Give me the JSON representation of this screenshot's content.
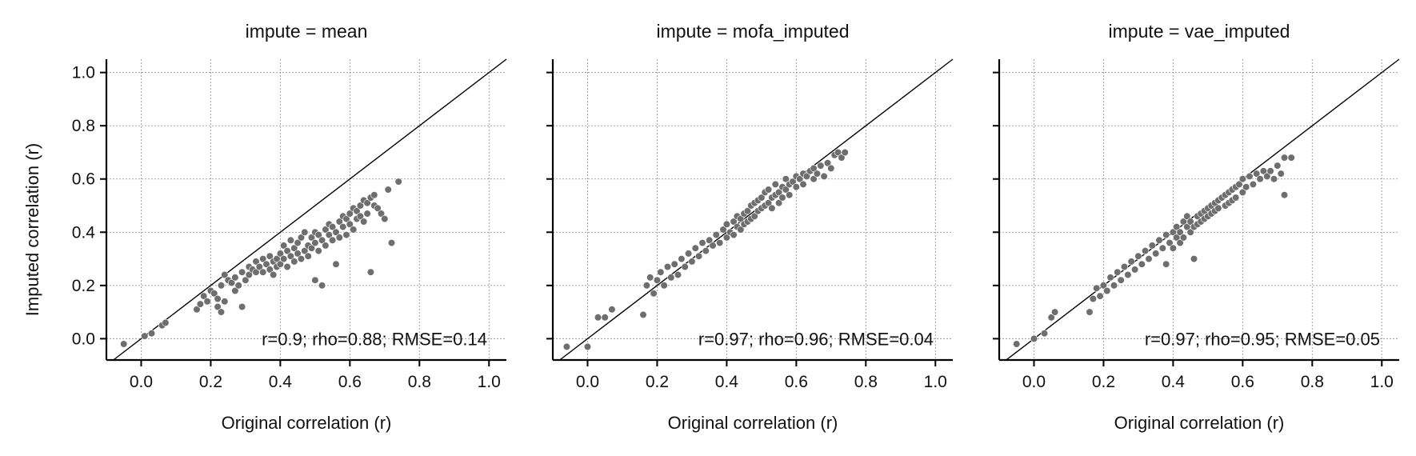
{
  "chart_data": [
    {
      "type": "scatter",
      "title": "impute = mean",
      "xlabel": "Original correlation (r)",
      "ylabel": "Imputed correlation (r)",
      "xlim": [
        -0.1,
        1.05
      ],
      "ylim": [
        -0.08,
        1.05
      ],
      "xticks": [
        "0.0",
        "0.2",
        "0.4",
        "0.6",
        "0.8",
        "1.0"
      ],
      "yticks": [
        "0.0",
        "0.2",
        "0.4",
        "0.6",
        "0.8",
        "1.0"
      ],
      "annotation": "r=0.9; rho=0.88; RMSE=0.14",
      "reference_line": "y = x",
      "grid": true,
      "point_color": "#6e6e6e",
      "points": [
        [
          -0.05,
          -0.02
        ],
        [
          0.01,
          0.01
        ],
        [
          0.03,
          0.02
        ],
        [
          0.06,
          0.05
        ],
        [
          0.07,
          0.06
        ],
        [
          0.16,
          0.11
        ],
        [
          0.17,
          0.13
        ],
        [
          0.18,
          0.16
        ],
        [
          0.19,
          0.14
        ],
        [
          0.2,
          0.18
        ],
        [
          0.21,
          0.17
        ],
        [
          0.22,
          0.15
        ],
        [
          0.22,
          0.12
        ],
        [
          0.23,
          0.2
        ],
        [
          0.23,
          0.1
        ],
        [
          0.24,
          0.24
        ],
        [
          0.24,
          0.14
        ],
        [
          0.25,
          0.22
        ],
        [
          0.26,
          0.21
        ],
        [
          0.27,
          0.23
        ],
        [
          0.27,
          0.18
        ],
        [
          0.28,
          0.2
        ],
        [
          0.29,
          0.25
        ],
        [
          0.29,
          0.12
        ],
        [
          0.3,
          0.22
        ],
        [
          0.31,
          0.27
        ],
        [
          0.31,
          0.24
        ],
        [
          0.32,
          0.26
        ],
        [
          0.33,
          0.25
        ],
        [
          0.33,
          0.29
        ],
        [
          0.34,
          0.27
        ],
        [
          0.35,
          0.25
        ],
        [
          0.35,
          0.3
        ],
        [
          0.36,
          0.28
        ],
        [
          0.37,
          0.26
        ],
        [
          0.37,
          0.31
        ],
        [
          0.38,
          0.29
        ],
        [
          0.38,
          0.24
        ],
        [
          0.39,
          0.3
        ],
        [
          0.39,
          0.27
        ],
        [
          0.4,
          0.32
        ],
        [
          0.4,
          0.28
        ],
        [
          0.41,
          0.3
        ],
        [
          0.41,
          0.35
        ],
        [
          0.42,
          0.27
        ],
        [
          0.42,
          0.33
        ],
        [
          0.43,
          0.31
        ],
        [
          0.43,
          0.37
        ],
        [
          0.44,
          0.29
        ],
        [
          0.44,
          0.34
        ],
        [
          0.45,
          0.32
        ],
        [
          0.45,
          0.36
        ],
        [
          0.46,
          0.3
        ],
        [
          0.46,
          0.38
        ],
        [
          0.47,
          0.33
        ],
        [
          0.47,
          0.4
        ],
        [
          0.48,
          0.35
        ],
        [
          0.48,
          0.31
        ],
        [
          0.49,
          0.38
        ],
        [
          0.49,
          0.34
        ],
        [
          0.5,
          0.4
        ],
        [
          0.5,
          0.36
        ],
        [
          0.5,
          0.22
        ],
        [
          0.51,
          0.39
        ],
        [
          0.51,
          0.33
        ],
        [
          0.52,
          0.37
        ],
        [
          0.52,
          0.2
        ],
        [
          0.53,
          0.41
        ],
        [
          0.53,
          0.35
        ],
        [
          0.54,
          0.39
        ],
        [
          0.54,
          0.43
        ],
        [
          0.55,
          0.37
        ],
        [
          0.55,
          0.42
        ],
        [
          0.56,
          0.4
        ],
        [
          0.56,
          0.28
        ],
        [
          0.57,
          0.44
        ],
        [
          0.57,
          0.38
        ],
        [
          0.58,
          0.46
        ],
        [
          0.58,
          0.42
        ],
        [
          0.59,
          0.45
        ],
        [
          0.59,
          0.39
        ],
        [
          0.6,
          0.47
        ],
        [
          0.6,
          0.43
        ],
        [
          0.61,
          0.49
        ],
        [
          0.61,
          0.41
        ],
        [
          0.62,
          0.48
        ],
        [
          0.62,
          0.45
        ],
        [
          0.63,
          0.5
        ],
        [
          0.63,
          0.46
        ],
        [
          0.64,
          0.52
        ],
        [
          0.64,
          0.44
        ],
        [
          0.65,
          0.51
        ],
        [
          0.65,
          0.47
        ],
        [
          0.66,
          0.53
        ],
        [
          0.66,
          0.25
        ],
        [
          0.67,
          0.54
        ],
        [
          0.67,
          0.5
        ],
        [
          0.68,
          0.49
        ],
        [
          0.69,
          0.47
        ],
        [
          0.7,
          0.45
        ],
        [
          0.71,
          0.56
        ],
        [
          0.72,
          0.36
        ],
        [
          0.74,
          0.59
        ]
      ]
    },
    {
      "type": "scatter",
      "title": "impute = mofa_imputed",
      "xlabel": "Original correlation (r)",
      "ylabel": "",
      "xlim": [
        -0.1,
        1.05
      ],
      "ylim": [
        -0.08,
        1.05
      ],
      "xticks": [
        "0.0",
        "0.2",
        "0.4",
        "0.6",
        "0.8",
        "1.0"
      ],
      "yticks": [
        "",
        "",
        "",
        "",
        "",
        ""
      ],
      "annotation": "r=0.97; rho=0.96; RMSE=0.04",
      "reference_line": "y = x",
      "grid": true,
      "point_color": "#6e6e6e",
      "points": [
        [
          -0.06,
          -0.03
        ],
        [
          0.0,
          -0.03
        ],
        [
          0.03,
          0.08
        ],
        [
          0.05,
          0.08
        ],
        [
          0.07,
          0.11
        ],
        [
          0.16,
          0.09
        ],
        [
          0.17,
          0.2
        ],
        [
          0.18,
          0.23
        ],
        [
          0.19,
          0.17
        ],
        [
          0.2,
          0.22
        ],
        [
          0.21,
          0.25
        ],
        [
          0.22,
          0.2
        ],
        [
          0.23,
          0.27
        ],
        [
          0.24,
          0.23
        ],
        [
          0.25,
          0.28
        ],
        [
          0.26,
          0.24
        ],
        [
          0.27,
          0.3
        ],
        [
          0.28,
          0.27
        ],
        [
          0.29,
          0.32
        ],
        [
          0.3,
          0.29
        ],
        [
          0.31,
          0.34
        ],
        [
          0.32,
          0.31
        ],
        [
          0.33,
          0.36
        ],
        [
          0.34,
          0.33
        ],
        [
          0.35,
          0.37
        ],
        [
          0.36,
          0.35
        ],
        [
          0.37,
          0.39
        ],
        [
          0.38,
          0.36
        ],
        [
          0.39,
          0.41
        ],
        [
          0.4,
          0.38
        ],
        [
          0.4,
          0.43
        ],
        [
          0.41,
          0.4
        ],
        [
          0.42,
          0.44
        ],
        [
          0.42,
          0.39
        ],
        [
          0.43,
          0.42
        ],
        [
          0.43,
          0.46
        ],
        [
          0.44,
          0.41
        ],
        [
          0.44,
          0.45
        ],
        [
          0.45,
          0.43
        ],
        [
          0.45,
          0.47
        ],
        [
          0.46,
          0.44
        ],
        [
          0.46,
          0.48
        ],
        [
          0.47,
          0.45
        ],
        [
          0.47,
          0.5
        ],
        [
          0.48,
          0.46
        ],
        [
          0.48,
          0.51
        ],
        [
          0.49,
          0.48
        ],
        [
          0.49,
          0.52
        ],
        [
          0.5,
          0.49
        ],
        [
          0.5,
          0.53
        ],
        [
          0.51,
          0.5
        ],
        [
          0.51,
          0.55
        ],
        [
          0.52,
          0.51
        ],
        [
          0.52,
          0.56
        ],
        [
          0.53,
          0.53
        ],
        [
          0.53,
          0.49
        ],
        [
          0.54,
          0.54
        ],
        [
          0.54,
          0.58
        ],
        [
          0.55,
          0.55
        ],
        [
          0.55,
          0.51
        ],
        [
          0.56,
          0.57
        ],
        [
          0.56,
          0.53
        ],
        [
          0.57,
          0.56
        ],
        [
          0.57,
          0.6
        ],
        [
          0.58,
          0.58
        ],
        [
          0.58,
          0.54
        ],
        [
          0.59,
          0.59
        ],
        [
          0.6,
          0.61
        ],
        [
          0.6,
          0.57
        ],
        [
          0.61,
          0.6
        ],
        [
          0.62,
          0.62
        ],
        [
          0.62,
          0.58
        ],
        [
          0.63,
          0.61
        ],
        [
          0.64,
          0.63
        ],
        [
          0.65,
          0.6
        ],
        [
          0.65,
          0.64
        ],
        [
          0.66,
          0.62
        ],
        [
          0.67,
          0.65
        ],
        [
          0.68,
          0.61
        ],
        [
          0.69,
          0.66
        ],
        [
          0.7,
          0.64
        ],
        [
          0.71,
          0.69
        ],
        [
          0.72,
          0.7
        ],
        [
          0.73,
          0.68
        ],
        [
          0.74,
          0.7
        ]
      ]
    },
    {
      "type": "scatter",
      "title": "impute = vae_imputed",
      "xlabel": "Original correlation (r)",
      "ylabel": "",
      "xlim": [
        -0.1,
        1.05
      ],
      "ylim": [
        -0.08,
        1.05
      ],
      "xticks": [
        "0.0",
        "0.2",
        "0.4",
        "0.6",
        "0.8",
        "1.0"
      ],
      "yticks": [
        "",
        "",
        "",
        "",
        "",
        ""
      ],
      "annotation": "r=0.97; rho=0.95; RMSE=0.05",
      "reference_line": "y = x",
      "grid": true,
      "point_color": "#6e6e6e",
      "points": [
        [
          -0.05,
          -0.02
        ],
        [
          0.0,
          0.0
        ],
        [
          0.03,
          0.02
        ],
        [
          0.05,
          0.08
        ],
        [
          0.06,
          0.1
        ],
        [
          0.16,
          0.1
        ],
        [
          0.17,
          0.15
        ],
        [
          0.18,
          0.19
        ],
        [
          0.19,
          0.16
        ],
        [
          0.2,
          0.2
        ],
        [
          0.21,
          0.18
        ],
        [
          0.22,
          0.23
        ],
        [
          0.23,
          0.2
        ],
        [
          0.24,
          0.25
        ],
        [
          0.25,
          0.22
        ],
        [
          0.26,
          0.27
        ],
        [
          0.27,
          0.24
        ],
        [
          0.28,
          0.29
        ],
        [
          0.29,
          0.26
        ],
        [
          0.3,
          0.31
        ],
        [
          0.31,
          0.28
        ],
        [
          0.32,
          0.33
        ],
        [
          0.33,
          0.3
        ],
        [
          0.34,
          0.35
        ],
        [
          0.35,
          0.32
        ],
        [
          0.36,
          0.37
        ],
        [
          0.37,
          0.34
        ],
        [
          0.38,
          0.39
        ],
        [
          0.38,
          0.28
        ],
        [
          0.39,
          0.36
        ],
        [
          0.4,
          0.4
        ],
        [
          0.4,
          0.34
        ],
        [
          0.41,
          0.38
        ],
        [
          0.41,
          0.42
        ],
        [
          0.42,
          0.36
        ],
        [
          0.42,
          0.4
        ],
        [
          0.43,
          0.44
        ],
        [
          0.43,
          0.38
        ],
        [
          0.44,
          0.42
        ],
        [
          0.44,
          0.46
        ],
        [
          0.45,
          0.4
        ],
        [
          0.45,
          0.44
        ],
        [
          0.46,
          0.3
        ],
        [
          0.46,
          0.42
        ],
        [
          0.47,
          0.46
        ],
        [
          0.47,
          0.43
        ],
        [
          0.48,
          0.47
        ],
        [
          0.48,
          0.44
        ],
        [
          0.49,
          0.48
        ],
        [
          0.49,
          0.45
        ],
        [
          0.5,
          0.49
        ],
        [
          0.5,
          0.46
        ],
        [
          0.51,
          0.5
        ],
        [
          0.51,
          0.47
        ],
        [
          0.52,
          0.51
        ],
        [
          0.52,
          0.48
        ],
        [
          0.53,
          0.52
        ],
        [
          0.53,
          0.49
        ],
        [
          0.54,
          0.53
        ],
        [
          0.55,
          0.5
        ],
        [
          0.55,
          0.54
        ],
        [
          0.56,
          0.51
        ],
        [
          0.56,
          0.55
        ],
        [
          0.57,
          0.52
        ],
        [
          0.57,
          0.56
        ],
        [
          0.58,
          0.53
        ],
        [
          0.58,
          0.57
        ],
        [
          0.59,
          0.58
        ],
        [
          0.6,
          0.55
        ],
        [
          0.6,
          0.6
        ],
        [
          0.61,
          0.57
        ],
        [
          0.62,
          0.61
        ],
        [
          0.63,
          0.58
        ],
        [
          0.64,
          0.62
        ],
        [
          0.65,
          0.6
        ],
        [
          0.66,
          0.63
        ],
        [
          0.67,
          0.61
        ],
        [
          0.68,
          0.63
        ],
        [
          0.69,
          0.6
        ],
        [
          0.7,
          0.65
        ],
        [
          0.71,
          0.62
        ],
        [
          0.72,
          0.54
        ],
        [
          0.72,
          0.68
        ],
        [
          0.74,
          0.68
        ]
      ]
    }
  ]
}
